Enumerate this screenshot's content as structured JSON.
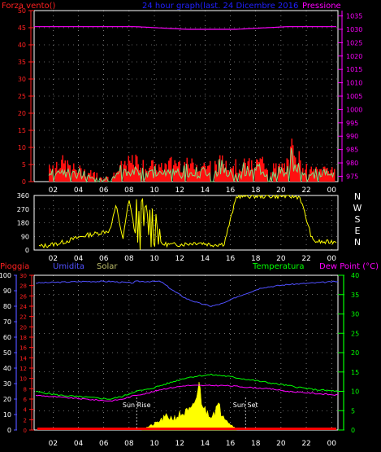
{
  "header": {
    "left_label": "Forza vento()",
    "center_label": "24 hour graph(last. 24 Dicembre 2016",
    "right_label": "Pressione"
  },
  "colors": {
    "wind": "#ff1010",
    "gust": "#ffffff",
    "gust_fill": "#7fdc7f",
    "pressure": "#ff00ff",
    "direction": "#ffff00",
    "humidity": "#5050ff",
    "temperature": "#00ff00",
    "dewpoint": "#ff00ff",
    "rain": "#ff0000",
    "solar": "#ffff00",
    "grid": "#ffffff",
    "axis_left_top": "#ff2020",
    "axis_right_top": "#ff00ff",
    "axis_humidity": "#5050ff",
    "axis_temp": "#00ff00"
  },
  "chart_data": [
    {
      "type": "line",
      "name": "wind-pressure",
      "x_ticks": [
        "02",
        "04",
        "06",
        "08",
        "10",
        "12",
        "14",
        "16",
        "18",
        "20",
        "22",
        "00"
      ],
      "y_left_ticks": [
        0,
        5,
        10,
        15,
        20,
        25,
        30,
        35,
        40,
        45,
        50
      ],
      "y_left_lim": [
        0,
        50
      ],
      "y_right_ticks": [
        975,
        980,
        985,
        990,
        995,
        1000,
        1005,
        1010,
        1015,
        1020,
        1025,
        1030,
        1035
      ],
      "y_right_lim": [
        973,
        1037
      ],
      "grid": true,
      "series": [
        {
          "name": "Pressione",
          "axis": "right",
          "x": [
            0,
            2,
            4,
            6,
            8,
            10,
            12,
            14,
            16,
            18,
            20,
            22,
            24
          ],
          "values": [
            1031,
            1031,
            1031,
            1031,
            1031,
            1030.5,
            1030,
            1030,
            1030,
            1030.5,
            1031,
            1031,
            1031
          ]
        },
        {
          "name": "Forza vento",
          "axis": "left",
          "x": [
            0,
            1,
            2,
            3,
            4,
            5,
            6,
            7,
            8,
            9,
            10,
            11,
            12,
            13,
            14,
            15,
            16,
            17,
            18,
            19,
            20,
            20.5,
            21,
            22,
            23,
            24
          ],
          "values": [
            4,
            5,
            6,
            4,
            3,
            2,
            1,
            5,
            6,
            5,
            4,
            6,
            5,
            5,
            5,
            6,
            5,
            5,
            6,
            4,
            5,
            13,
            5,
            3,
            4,
            4
          ]
        }
      ]
    },
    {
      "type": "scatter",
      "name": "wind-direction",
      "x_ticks": [
        "02",
        "04",
        "06",
        "08",
        "10",
        "12",
        "14",
        "16",
        "18",
        "20",
        "22",
        "00"
      ],
      "y_ticks": [
        0,
        90,
        180,
        270,
        360
      ],
      "y_lim": [
        0,
        360
      ],
      "compass_labels": [
        "N",
        "W",
        "S",
        "E",
        "N"
      ],
      "grid": true,
      "series": [
        {
          "name": "direction",
          "x": [
            0,
            1,
            2,
            3,
            4,
            5,
            6,
            6.5,
            7,
            7.5,
            8,
            8.5,
            9,
            9.5,
            10,
            11,
            12,
            13,
            14,
            15,
            16,
            17,
            18,
            19,
            20,
            21,
            22,
            23,
            24
          ],
          "values": [
            20,
            30,
            45,
            70,
            95,
            110,
            130,
            300,
            60,
            340,
            100,
            320,
            70,
            200,
            40,
            35,
            40,
            50,
            35,
            40,
            355,
            355,
            355,
            355,
            355,
            350,
            60,
            50,
            60
          ]
        }
      ]
    },
    {
      "type": "line",
      "name": "temperature-humidity",
      "top_labels": {
        "rain": "Pioggia",
        "humidity": "Umidita",
        "solar": "Solar",
        "temperature": "Temperatura",
        "dewpoint": "Dew Point (°C)"
      },
      "x_ticks": [
        "02",
        "04",
        "06",
        "08",
        "10",
        "12",
        "14",
        "16",
        "18",
        "20",
        "22",
        "00"
      ],
      "y_humidity_ticks": [
        0,
        10,
        20,
        30,
        40,
        50,
        60,
        70,
        80,
        90,
        100
      ],
      "y_rain_ticks": [
        0,
        2,
        4,
        6,
        8,
        10,
        12,
        14,
        16,
        18,
        20,
        22,
        24,
        26,
        28,
        30
      ],
      "y_temp_ticks": [
        0,
        5,
        10,
        15,
        20,
        25,
        30,
        35,
        40
      ],
      "y_temp_lim": [
        0,
        40
      ],
      "annotations": [
        {
          "label": "Sun Rise",
          "x": 8.1
        },
        {
          "label": "Sun Set",
          "x": 16.7
        }
      ],
      "grid": true,
      "series": [
        {
          "name": "Umidita",
          "axis": "humidity",
          "x": [
            0,
            4,
            6,
            7.8,
            8,
            9,
            10,
            11,
            12,
            13,
            14,
            15,
            16,
            17,
            18,
            19,
            20,
            22,
            24
          ],
          "values": [
            95,
            96,
            96,
            95,
            96,
            96,
            96,
            90,
            85,
            82,
            80,
            82,
            86,
            89,
            92,
            93,
            94,
            95,
            96
          ]
        },
        {
          "name": "Temperatura",
          "axis": "temp",
          "x": [
            0,
            2,
            4,
            6,
            7,
            8,
            9,
            10,
            11,
            12,
            13,
            14,
            15,
            16,
            17,
            18,
            19,
            20,
            22,
            24
          ],
          "values": [
            10,
            9,
            8.5,
            8,
            8.7,
            10,
            10.5,
            11.5,
            12.5,
            13.5,
            14,
            14.3,
            14,
            13.5,
            13,
            12.5,
            12,
            11.5,
            10.5,
            10
          ]
        },
        {
          "name": "Dew Point",
          "axis": "temp",
          "x": [
            0,
            2,
            4,
            6,
            7,
            8,
            9,
            10,
            11,
            12,
            13,
            14,
            15,
            16,
            17,
            18,
            19,
            20,
            22,
            24
          ],
          "values": [
            9,
            8.5,
            8,
            7.5,
            8,
            9,
            9.5,
            10.5,
            11,
            11.5,
            11.5,
            11.5,
            11.5,
            11.3,
            11,
            10.8,
            10.5,
            10,
            9.5,
            9
          ]
        },
        {
          "name": "Solar",
          "axis": "temp",
          "x": [
            8.5,
            9,
            9.5,
            10,
            10.5,
            11,
            11.5,
            12,
            12.5,
            13,
            13.5,
            14,
            14.5,
            15,
            15.5,
            16
          ],
          "values": [
            0.2,
            0.8,
            1.5,
            2.5,
            3.5,
            3,
            4,
            4.5,
            5,
            11,
            5,
            4,
            6,
            4,
            1.5,
            0.3
          ]
        },
        {
          "name": "Pioggia",
          "axis": "rain",
          "x": [
            0,
            24
          ],
          "values": [
            0,
            0
          ]
        }
      ]
    }
  ]
}
